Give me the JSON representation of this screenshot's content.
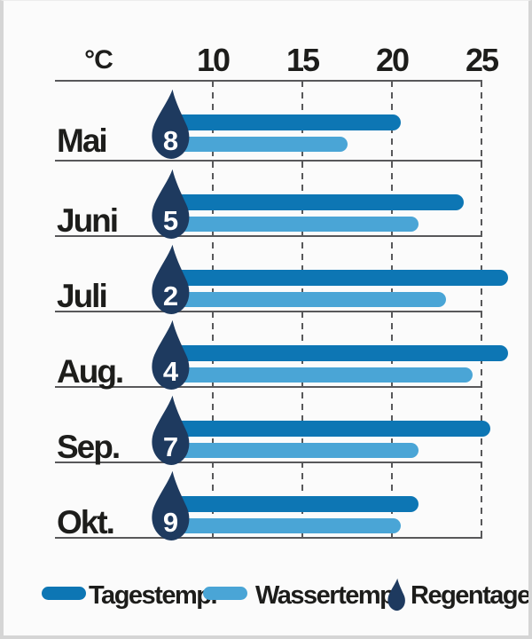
{
  "axis": {
    "unit_label": "°C",
    "ticks": [
      10,
      15,
      20,
      25
    ]
  },
  "chart_data": {
    "type": "bar",
    "orientation": "horizontal",
    "title": "",
    "xlabel": "°C",
    "ylabel": "",
    "x_ticks": [
      10,
      15,
      20,
      25
    ],
    "xlim_shown": [
      8,
      27
    ],
    "grid": "dashed-vertical",
    "categories": [
      "Mai",
      "Juni",
      "Juli",
      "Aug.",
      "Sep.",
      "Okt."
    ],
    "series": [
      {
        "name": "Tagestemp.",
        "color": "#0d76b4",
        "values": [
          20.5,
          24,
          26.5,
          26.5,
          25.5,
          21.5
        ]
      },
      {
        "name": "Wassertemp.",
        "color": "#4aa5d6",
        "values": [
          17.5,
          21.5,
          23,
          24.5,
          21.5,
          20.5
        ]
      }
    ],
    "annotations": {
      "name": "Regentage",
      "description": "rain days per month shown inside droplet icons",
      "values": [
        8,
        5,
        2,
        4,
        7,
        9
      ]
    },
    "legend_position": "bottom"
  },
  "legend": {
    "items": [
      {
        "label": "Tagestemp.",
        "swatch": "bar",
        "color": "#0d76b4"
      },
      {
        "label": "Wassertemp.",
        "swatch": "bar",
        "color": "#4aa5d6"
      },
      {
        "label": "Regentage",
        "swatch": "droplet",
        "color": "#1e3a5f"
      }
    ]
  },
  "colors": {
    "day_temp": "#0d76b4",
    "water_temp": "#4aa5d6",
    "droplet": "#1e3a5f",
    "line": "#58585a",
    "text": "#1d1d1b",
    "background": "#fbfbfb",
    "frame_border": "#d5d5d5"
  }
}
